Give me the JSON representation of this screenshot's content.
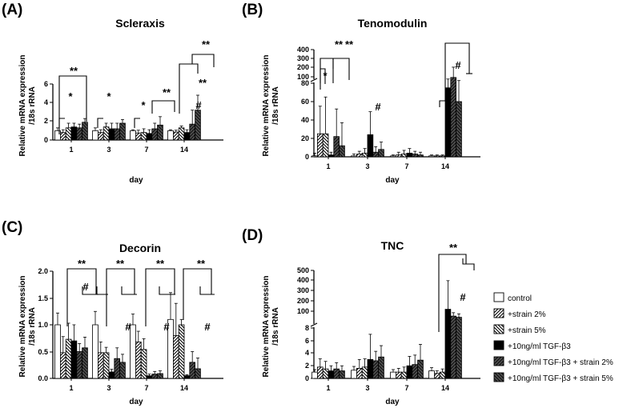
{
  "colors": {
    "control": "#ffffff",
    "black": "#000000",
    "grey": "#555555"
  },
  "legend": [
    {
      "label": "control",
      "pattern": "white"
    },
    {
      "label": "+strain 2%",
      "pattern": "diagR"
    },
    {
      "label": "+strain 5%",
      "pattern": "diagL"
    },
    {
      "label": "+10ng/ml TGF-β3",
      "pattern": "black"
    },
    {
      "label": "+10ng/ml TGF-β3 + strain 2%",
      "pattern": "greyR"
    },
    {
      "label": "+10ng/ml TGF-β3 + strain 5%",
      "pattern": "greyL"
    }
  ],
  "chart_data": [
    {
      "panel": "(A)",
      "title": "Scleraxis",
      "type": "bar",
      "ylabel": "Relative mRNA expression /18s rRNA",
      "xlabel": "day",
      "categories": [
        "1",
        "3",
        "7",
        "14"
      ],
      "ylim": [
        0,
        6
      ],
      "yticks": [
        "0",
        "2",
        "4",
        "6"
      ],
      "series": [
        {
          "name": "control",
          "values": [
            1.0,
            1.0,
            1.0,
            1.0
          ],
          "err": [
            0.3,
            0.3,
            0.1,
            0.1
          ]
        },
        {
          "name": "+strain 2%",
          "values": [
            0.8,
            0.8,
            0.75,
            0.85
          ],
          "err": [
            0.3,
            0.3,
            0.3,
            0.2
          ]
        },
        {
          "name": "+strain 5%",
          "values": [
            1.3,
            1.4,
            0.8,
            1.3
          ],
          "err": [
            0.5,
            0.4,
            0.4,
            0.2
          ]
        },
        {
          "name": "+10ng/ml TGF-β3",
          "values": [
            1.4,
            1.2,
            0.7,
            0.8
          ],
          "err": [
            0.4,
            0.6,
            0.4,
            0.3
          ]
        },
        {
          "name": "+10ng/ml TGF-β3 + strain 2%",
          "values": [
            1.3,
            1.2,
            1.2,
            1.7
          ],
          "err": [
            0.4,
            0.6,
            0.6,
            1.5
          ]
        },
        {
          "name": "+10ng/ml TGF-β3 + strain 5%",
          "values": [
            1.9,
            1.8,
            1.6,
            3.2
          ],
          "err": [
            0.4,
            0.4,
            0.9,
            1.6
          ]
        }
      ],
      "sig_labels": [
        "**",
        "*",
        "*",
        "*",
        "**",
        "**",
        "**",
        "#"
      ]
    },
    {
      "panel": "(B)",
      "title": "Tenomodulin",
      "type": "bar",
      "ylabel": "Relative mRNA expression /18s rRNA",
      "xlabel": "day",
      "categories": [
        "1",
        "3",
        "7",
        "14"
      ],
      "ylim": [
        0,
        400
      ],
      "broken_axis": [
        80,
        90
      ],
      "yticks": [
        "0",
        "20",
        "40",
        "60",
        "80",
        "100",
        "200",
        "300",
        "400"
      ],
      "series": [
        {
          "name": "control",
          "values": [
            1,
            1,
            1,
            1
          ],
          "err": [
            3,
            2,
            1,
            1
          ]
        },
        {
          "name": "+strain 2%",
          "values": [
            25,
            3,
            2,
            1
          ],
          "err": [
            30,
            3,
            3,
            1
          ]
        },
        {
          "name": "+strain 5%",
          "values": [
            25,
            4,
            3,
            1
          ],
          "err": [
            40,
            5,
            4,
            1
          ]
        },
        {
          "name": "+10ng/ml TGF-β3",
          "values": [
            2,
            24,
            4,
            75
          ],
          "err": [
            3,
            25,
            5,
            40
          ]
        },
        {
          "name": "+10ng/ml TGF-β3 + strain 2%",
          "values": [
            22,
            5,
            3,
            130
          ],
          "err": [
            30,
            6,
            3,
            100
          ]
        },
        {
          "name": "+10ng/ml TGF-β3 + strain 5%",
          "values": [
            12,
            8,
            2,
            60
          ],
          "err": [
            25,
            8,
            3,
            40
          ]
        }
      ],
      "sig_labels": [
        "**",
        "*",
        "**",
        "#",
        "#"
      ]
    },
    {
      "panel": "(C)",
      "title": "Decorin",
      "type": "bar",
      "ylabel": "Relative mRNA expression /18s rRNA",
      "xlabel": "day",
      "categories": [
        "1",
        "3",
        "7",
        "14"
      ],
      "ylim": [
        0,
        2.0
      ],
      "yticks": [
        "0.0",
        "0.5",
        "1.0",
        "1.5",
        "2.0"
      ],
      "series": [
        {
          "name": "control",
          "values": [
            1.0,
            1.0,
            1.0,
            1.1
          ],
          "err": [
            0.22,
            0.25,
            0.2,
            0.5
          ]
        },
        {
          "name": "+strain 2%",
          "values": [
            0.48,
            0.48,
            0.68,
            0.8
          ],
          "err": [
            0.3,
            0.2,
            0.2,
            0.6
          ]
        },
        {
          "name": "+strain 5%",
          "values": [
            0.73,
            0.48,
            0.54,
            1.0
          ],
          "err": [
            0.3,
            0.1,
            0.2,
            0.1
          ]
        },
        {
          "name": "+10ng/ml TGF-β3",
          "values": [
            0.7,
            0.12,
            0.05,
            0.05
          ],
          "err": [
            0.3,
            0.05,
            0.03,
            0.02
          ]
        },
        {
          "name": "+10ng/ml TGF-β3 + strain 2%",
          "values": [
            0.5,
            0.37,
            0.08,
            0.3
          ],
          "err": [
            0.15,
            0.2,
            0.05,
            0.2
          ]
        },
        {
          "name": "+10ng/ml TGF-β3 + strain 5%",
          "values": [
            0.57,
            0.3,
            0.09,
            0.18
          ],
          "err": [
            0.2,
            0.15,
            0.05,
            0.2
          ]
        }
      ],
      "sig_labels": [
        "**",
        "**",
        "**",
        "**",
        "#",
        "#",
        "#",
        "#"
      ]
    },
    {
      "panel": "(D)",
      "title": "TNC",
      "type": "bar",
      "ylabel": "Relative mRNA expression /18s rRNA",
      "xlabel": "day",
      "categories": [
        "1",
        "3",
        "7",
        "14"
      ],
      "ylim": [
        0,
        500
      ],
      "broken_axis": [
        8,
        10
      ],
      "yticks": [
        "0",
        "2",
        "4",
        "6",
        "8",
        "100",
        "200",
        "300",
        "400",
        "500"
      ],
      "series": [
        {
          "name": "control",
          "values": [
            1.0,
            1.3,
            1.0,
            1.2
          ],
          "err": [
            0.4,
            0.6,
            0.4,
            0.5
          ]
        },
        {
          "name": "+strain 2%",
          "values": [
            1.8,
            1.6,
            1.0,
            0.8
          ],
          "err": [
            1.3,
            1.4,
            0.6,
            0.4
          ]
        },
        {
          "name": "+strain 5%",
          "values": [
            1.5,
            1.8,
            1.0,
            1.0
          ],
          "err": [
            1.2,
            1.3,
            0.8,
            0.5
          ]
        },
        {
          "name": "+10ng/ml TGF-β3",
          "values": [
            1.2,
            3.0,
            2.0,
            160
          ],
          "err": [
            0.8,
            4.0,
            1.5,
            250
          ]
        },
        {
          "name": "+10ng/ml TGF-β3 + strain 2%",
          "values": [
            1.5,
            2.8,
            2.2,
            100
          ],
          "err": [
            1.0,
            1.5,
            1.5,
            30
          ]
        },
        {
          "name": "+10ng/ml TGF-β3 + strain 5%",
          "values": [
            1.2,
            3.4,
            2.9,
            90
          ],
          "err": [
            0.8,
            1.8,
            2.5,
            30
          ]
        }
      ],
      "sig_labels": [
        "**",
        "#"
      ]
    }
  ]
}
